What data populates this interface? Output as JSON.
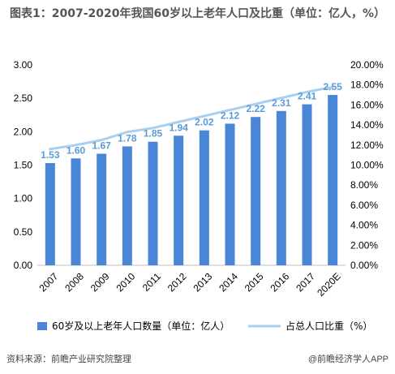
{
  "title": "图表1：2007-2020年我国60岁以上老年人口及比重（单位：亿人，%）",
  "source": "资料来源：前瞻产业研究院整理",
  "brand": "@前瞻经济学人APP",
  "colors": {
    "bar": "#4a86d8",
    "line": "#a9cff0",
    "label": "#5b9bd5"
  },
  "chart_data": {
    "type": "bar",
    "categories": [
      "2007",
      "2008",
      "2009",
      "2010",
      "2011",
      "2012",
      "2013",
      "2014",
      "2015",
      "2016",
      "2017",
      "2020E"
    ],
    "series": [
      {
        "name": "60岁及以上老年人口数量（单位：亿人）",
        "type": "bar",
        "axis": "left",
        "values": [
          1.53,
          1.6,
          1.67,
          1.78,
          1.85,
          1.94,
          2.02,
          2.12,
          2.22,
          2.31,
          2.41,
          2.55
        ],
        "labels": [
          "1.53",
          "1.60",
          "1.67",
          "1.78",
          "1.85",
          "1.94",
          "2.02",
          "2.12",
          "2.22",
          "2.31",
          "2.41",
          "2.55"
        ]
      },
      {
        "name": "占总人口比重（%）",
        "type": "line",
        "axis": "right",
        "values": [
          11.6,
          12.0,
          12.5,
          13.3,
          13.7,
          14.3,
          14.9,
          15.5,
          16.1,
          16.7,
          17.3,
          17.8
        ]
      }
    ],
    "ylim_left": [
      0,
      3.0
    ],
    "left_ticks": [
      "0.00",
      "0.50",
      "1.00",
      "1.50",
      "2.00",
      "2.50",
      "3.00"
    ],
    "ylim_right": [
      0,
      20
    ],
    "right_ticks": [
      "0.00%",
      "2.00%",
      "4.00%",
      "6.00%",
      "8.00%",
      "10.00%",
      "12.00%",
      "14.00%",
      "16.00%",
      "18.00%",
      "20.00%"
    ],
    "grid": false,
    "legend_position": "bottom"
  }
}
